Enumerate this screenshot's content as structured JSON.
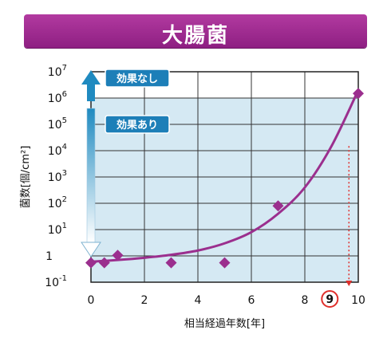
{
  "title": "大腸菌",
  "chart_data": {
    "type": "line",
    "title": "大腸菌",
    "xlabel": "相当経過年数[年]",
    "ylabel": "菌数[個/cm²]",
    "xlim": [
      0,
      10
    ],
    "ylim_log10": [
      -1,
      7
    ],
    "x_ticks": [
      "0",
      "2",
      "4",
      "6",
      "8",
      "10"
    ],
    "y_ticks": [
      {
        "base": "10",
        "exp": "7"
      },
      {
        "base": "10",
        "exp": "6"
      },
      {
        "base": "10",
        "exp": "5"
      },
      {
        "base": "10",
        "exp": "4"
      },
      {
        "base": "10",
        "exp": "3"
      },
      {
        "base": "10",
        "exp": "2"
      },
      {
        "base": "10",
        "exp": "1"
      },
      {
        "base": "1",
        "exp": ""
      },
      {
        "base": "10",
        "exp": "-1"
      }
    ],
    "points": [
      {
        "x": 0,
        "y": 0.55
      },
      {
        "x": 0.5,
        "y": 0.55
      },
      {
        "x": 1,
        "y": 1.05
      },
      {
        "x": 3,
        "y": 0.55
      },
      {
        "x": 5,
        "y": 0.55
      },
      {
        "x": 7,
        "y": 80
      },
      {
        "x": 10,
        "y": 1500000
      }
    ],
    "fit_curve": [
      {
        "x": 0,
        "y": 0.6
      },
      {
        "x": 1,
        "y": 0.7
      },
      {
        "x": 2,
        "y": 0.85
      },
      {
        "x": 3,
        "y": 1.1
      },
      {
        "x": 4,
        "y": 1.6
      },
      {
        "x": 5,
        "y": 3
      },
      {
        "x": 6,
        "y": 8
      },
      {
        "x": 7,
        "y": 40
      },
      {
        "x": 8,
        "y": 400
      },
      {
        "x": 9,
        "y": 15000
      },
      {
        "x": 10,
        "y": 2000000
      }
    ],
    "shaded_region_ylim": [
      0.1,
      1000000
    ],
    "effect_labels": {
      "upper": "効果なし",
      "lower": "効果あり"
    },
    "marker": {
      "x": 9.65,
      "label": "9"
    },
    "grid": true,
    "colors": {
      "series": "#9b2f8e",
      "shade": "#d5e9f3",
      "arrow": "#1f8ac0",
      "marker": "#e0302c",
      "badge": "#1d7fb8",
      "badge_text_lower": "#f5e94a"
    }
  }
}
